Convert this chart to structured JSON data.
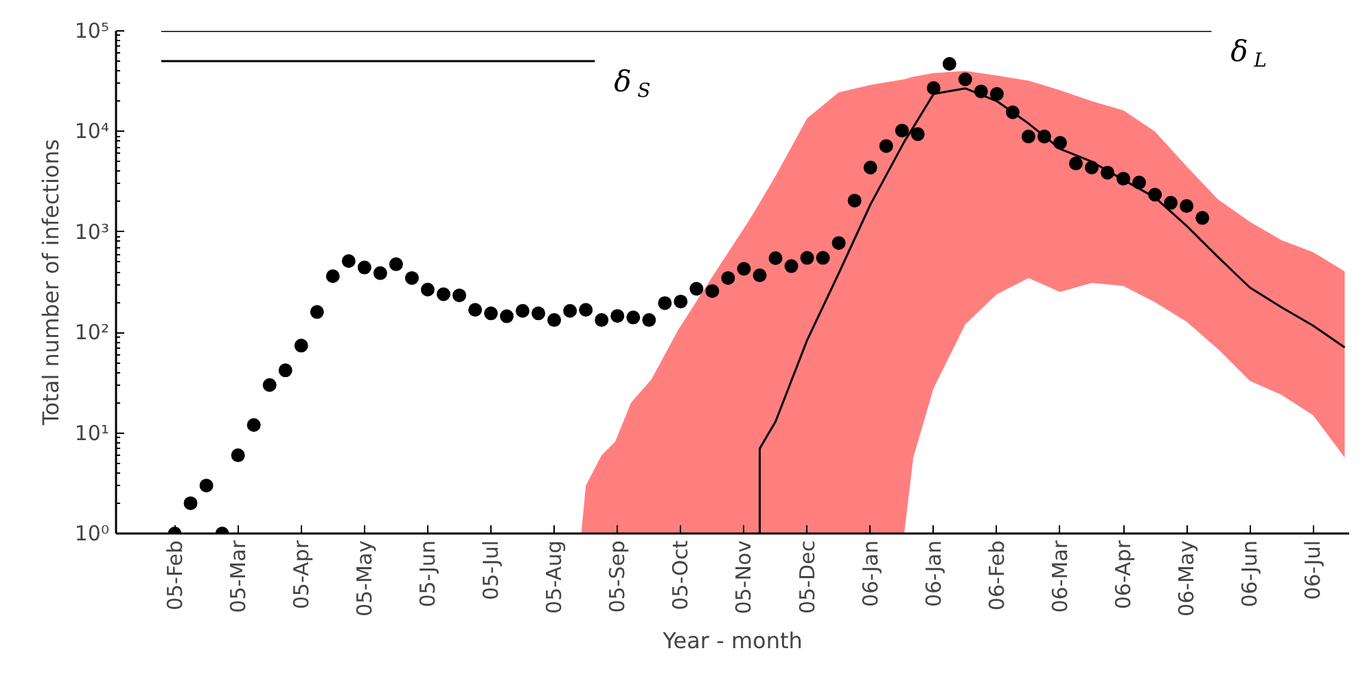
{
  "chart_data": {
    "type": "scatter",
    "xlabel": "Year - month",
    "ylabel": "Total number of infections",
    "log": "y",
    "grid": false,
    "legend": false,
    "xlim": [
      "2005-02-02",
      "2006-08-02"
    ],
    "xticks": [
      {
        "value": "2005-02-28",
        "label": "05-Feb"
      },
      {
        "value": "2005-03-28",
        "label": "05-Mar"
      },
      {
        "value": "2005-04-25",
        "label": "05-Apr"
      },
      {
        "value": "2005-05-23",
        "label": "05-May"
      },
      {
        "value": "2005-06-20",
        "label": "05-Jun"
      },
      {
        "value": "2005-07-18",
        "label": "05-Jul"
      },
      {
        "value": "2005-08-15",
        "label": "05-Aug"
      },
      {
        "value": "2005-09-12",
        "label": "05-Sep"
      },
      {
        "value": "2005-10-10",
        "label": "05-Oct"
      },
      {
        "value": "2005-11-07",
        "label": "05-Nov"
      },
      {
        "value": "2005-12-05",
        "label": "05-Dec"
      },
      {
        "value": "2006-01-02",
        "label": "06-Jan"
      },
      {
        "value": "2006-01-30",
        "label": "06-Jan"
      },
      {
        "value": "2006-02-27",
        "label": "06-Feb"
      },
      {
        "value": "2006-03-27",
        "label": "06-Mar"
      },
      {
        "value": "2006-04-24",
        "label": "06-Apr"
      },
      {
        "value": "2006-05-22",
        "label": "06-May"
      },
      {
        "value": "2006-06-19",
        "label": "06-Jun"
      },
      {
        "value": "2006-07-17",
        "label": "06-Jul"
      }
    ],
    "ylim": [
      1,
      100000
    ],
    "yticks": [
      {
        "value": 1,
        "label": "10⁰"
      },
      {
        "value": 10,
        "label": "10¹"
      },
      {
        "value": 100,
        "label": "10²"
      },
      {
        "value": 1000,
        "label": "10³"
      },
      {
        "value": 10000,
        "label": "10⁴"
      },
      {
        "value": 100000,
        "label": "10⁵"
      }
    ],
    "series": [
      {
        "type": "line",
        "color": "#ff7f7f",
        "values": [
          null,
          null,
          null,
          null,
          null,
          null,
          null,
          null,
          null,
          null,
          null,
          null,
          null,
          null,
          null,
          null,
          null,
          null,
          null,
          null,
          null,
          null,
          null,
          null,
          null,
          null,
          null,
          null,
          null,
          null
        ],
        "x": [
          "2005-08-27",
          "2005-08-29",
          "2005-09-05",
          "2005-09-11",
          "2005-09-18",
          "2005-09-27",
          "2005-10-09",
          "2005-10-21",
          "2005-11-10",
          "2005-11-14",
          "2005-11-21",
          "2005-12-05",
          "2005-12-19",
          "2006-01-02",
          "2006-01-17",
          "2006-01-21",
          "2006-01-30",
          "2006-02-13",
          "2006-02-27",
          "2006-03-13",
          "2006-03-27",
          "2006-04-10",
          "2006-04-24",
          "2006-05-08",
          "2006-05-22",
          "2006-06-05",
          "2006-06-19",
          "2006-07-03",
          "2006-07-17",
          "2006-07-31"
        ],
        "lower": [
          1,
          1,
          1,
          1,
          1,
          1,
          1,
          1,
          1,
          1,
          1,
          1,
          1,
          1,
          1,
          5.7,
          28,
          120,
          240,
          348,
          253,
          311,
          290,
          200,
          128,
          68,
          33,
          24,
          15,
          5.7
        ],
        "upper": [
          1,
          3,
          6,
          8.2,
          20,
          34,
          107,
          282,
          1380,
          1950,
          3600,
          13500,
          24500,
          29000,
          33000,
          35000,
          38000,
          40000,
          36000,
          32000,
          25700,
          20000,
          16200,
          10000,
          4500,
          2100,
          1260,
          830,
          630,
          405
        ]
      },
      {
        "type": "line",
        "color": "#000000",
        "x": [
          "2005-11-14",
          "2005-11-14",
          "2005-11-21",
          "2005-12-05",
          "2005-12-19",
          "2006-01-02",
          "2006-01-17",
          "2006-01-21",
          "2006-01-30",
          "2006-02-13",
          "2006-02-27",
          "2006-03-13",
          "2006-03-27",
          "2006-04-10",
          "2006-04-24",
          "2006-05-08",
          "2006-05-22",
          "2006-06-05",
          "2006-06-19",
          "2006-07-03",
          "2006-07-17",
          "2006-07-31"
        ],
        "values": [
          1,
          7,
          13,
          84,
          388,
          1870,
          7900,
          11000,
          23600,
          26800,
          20000,
          12000,
          6700,
          5000,
          3300,
          2200,
          1150,
          560,
          280,
          178,
          117,
          71
        ]
      },
      {
        "type": "line",
        "name": "δ$_{L}$",
        "color": "#000000",
        "x": [
          "2005-02-22",
          "2006-06-02"
        ],
        "values": [
          100000,
          100000
        ]
      },
      {
        "type": "line",
        "name": "δ$_{S}$",
        "color": "#000000",
        "x": [
          "2005-02-22",
          "2005-09-02"
        ],
        "values": [
          50000,
          50000
        ]
      },
      {
        "marker": "circle",
        "color": "#000000",
        "x": [
          "2005-02-28",
          "2005-03-07",
          "2005-03-14",
          "2005-03-21",
          "2005-03-28",
          "2005-04-04",
          "2005-04-11",
          "2005-04-18",
          "2005-04-25",
          "2005-05-02",
          "2005-05-09",
          "2005-05-16",
          "2005-05-23",
          "2005-05-30",
          "2005-06-06",
          "2005-06-13",
          "2005-06-20",
          "2005-06-27",
          "2005-07-04",
          "2005-07-11",
          "2005-07-18",
          "2005-07-25",
          "2005-08-01",
          "2005-08-08",
          "2005-08-15",
          "2005-08-22",
          "2005-08-29",
          "2005-09-05",
          "2005-09-12",
          "2005-09-19",
          "2005-09-26",
          "2005-10-03",
          "2005-10-10",
          "2005-10-17",
          "2005-10-24",
          "2005-10-31",
          "2005-11-07",
          "2005-11-14",
          "2005-11-21",
          "2005-11-28",
          "2005-12-05",
          "2005-12-12",
          "2005-12-19",
          "2005-12-26",
          "2006-01-02",
          "2006-01-09",
          "2006-01-16",
          "2006-01-23",
          "2006-01-30",
          "2006-02-06",
          "2006-02-13",
          "2006-02-20",
          "2006-02-27",
          "2006-03-06",
          "2006-03-13",
          "2006-03-20",
          "2006-03-27",
          "2006-04-03",
          "2006-04-10",
          "2006-04-17",
          "2006-04-24",
          "2006-05-01",
          "2006-05-08",
          "2006-05-15",
          "2006-05-22",
          "2006-05-29"
        ],
        "values": [
          1,
          2,
          3,
          1,
          6,
          12,
          30,
          42,
          74,
          160,
          363,
          513,
          443,
          389,
          477,
          348,
          267,
          240,
          234,
          168,
          155,
          145,
          164,
          155,
          133,
          164,
          168,
          133,
          146,
          141,
          133,
          196,
          203,
          272,
          258,
          348,
          430,
          370,
          548,
          457,
          552,
          552,
          776,
          2050,
          4370,
          7160,
          10200,
          9400,
          27000,
          47000,
          33000,
          25000,
          23600,
          15500,
          8900,
          8900,
          7700,
          4800,
          4370,
          3890,
          3390,
          3100,
          2350,
          1950,
          1810,
          1380
        ]
      }
    ]
  }
}
